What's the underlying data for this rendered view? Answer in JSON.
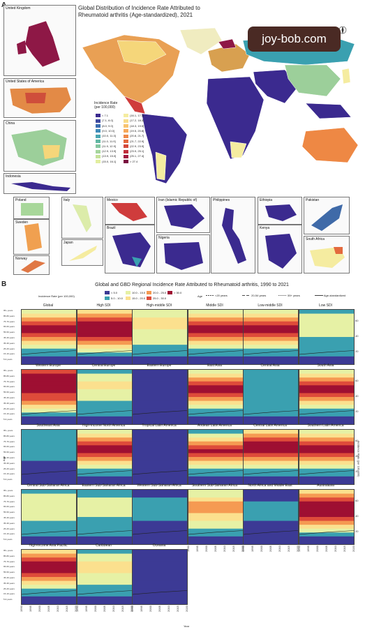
{
  "panel_a": {
    "letter": "A",
    "title_line1": "Global Distribution of Incidence Rate Attributed to",
    "title_line2": "Rheumatoid arthritis (Age-standardized), 2021",
    "legend_title_line1": "Incidence Rate",
    "legend_title_line2": "(per 100,000)",
    "legend_left": [
      "< 7.1",
      "(7.1, 8.0]",
      "(8.0, 9.0]",
      "(9.0, 10.0]",
      "(10.0, 11.0]",
      "(11.0, 11.9]",
      "(11.9, 12.9]",
      "(12.9, 13.9]",
      "(13.9, 15.0]",
      "(15.0, 16.1]"
    ],
    "legend_right": [
      "(16.1, 17.2]",
      "(17.2, 18.3]",
      "(18.3, 19.5]",
      "(19.5, 20.8]",
      "(20.8, 21.7]",
      "(21.7, 22.9]",
      "(22.9, 23.9]",
      "(23.9, 25.1]",
      "(25.1, 27.4]",
      "> 27.4"
    ],
    "legend_colors_left": [
      "#3b2a8f",
      "#3f4aa0",
      "#3a6cb0",
      "#3f8cba",
      "#4aa6b2",
      "#62b8a4",
      "#84c6a0",
      "#a6d59c",
      "#c6e29a",
      "#e2eea0"
    ],
    "legend_colors_right": [
      "#f5eca0",
      "#f7dc8a",
      "#f8c470",
      "#f6a85a",
      "#ef8a4a",
      "#e36a3e",
      "#d4493a",
      "#c02e3c",
      "#a21a42",
      "#7a0c40"
    ],
    "insets": [
      {
        "name": "United Kingdom",
        "color": "#8e1846"
      },
      {
        "name": "United States of America",
        "color": "#e38a46"
      },
      {
        "name": "China",
        "color": "#9ccf9a"
      },
      {
        "name": "Indonesia",
        "color": "#3b2a8f"
      },
      {
        "name": "Poland",
        "color": "#a8d79a"
      },
      {
        "name": "Italy",
        "color": "#dcecaa"
      },
      {
        "name": "Mexico",
        "color": "#cf3c3c"
      },
      {
        "name": "Iran (Islamic Republic of)",
        "color": "#3b2a8f"
      },
      {
        "name": "Philippines",
        "color": "#3b2a8f"
      },
      {
        "name": "Ethiopia",
        "color": "#3b2a8f"
      },
      {
        "name": "Pakistan",
        "color": "#3f6aa8"
      },
      {
        "name": "Sweden",
        "color": "#f0a050"
      },
      {
        "name": "Japan",
        "color": "#f5eca0"
      },
      {
        "name": "Brazil",
        "color": "#3b2a8f"
      },
      {
        "name": "Nigeria",
        "color": "#3b2a8f"
      },
      {
        "name": "Kenya",
        "color": "#3b2a8f"
      },
      {
        "name": "South Africa",
        "color": "#f5eca0"
      },
      {
        "name": "Norway",
        "color": "#e07845"
      }
    ]
  },
  "watermark": "joy-bob.com",
  "panel_b": {
    "letter": "B",
    "title": "Global and GBD Regional Incidence Rate Attributed to Rheumatoid arthritis, 1990 to 2021",
    "legend_label": "Incidence Rate (per 100,000)",
    "legend_bins": [
      "< 5.0",
      "5.0 - 10.0",
      "10.0 - 15.0",
      "15.0 - 20.0",
      "20.0 - 25.0",
      "25.0 - 30.0",
      "> 30.0"
    ],
    "legend_colors": [
      "#3c3a95",
      "#3aa0b0",
      "#e6f1a5",
      "#fbe08e",
      "#f59a52",
      "#de4b3a",
      "#9e0f32"
    ],
    "age_legend_title": "Age",
    "age_lines": [
      "<20 years",
      "20-54 years",
      "55+ years",
      "Age-standardized"
    ],
    "age_line_colors": [
      "#111111",
      "#111111",
      "#111111",
      "#111111"
    ],
    "x_axis_title": "Year",
    "y_axis_title": "Age",
    "right_axis_title": "Incidence Rate (per 100,000)",
    "right_ticks": [
      "60",
      "40",
      "20"
    ],
    "x_ticks": [
      "1990",
      "1995",
      "2000",
      "2005",
      "2010",
      "2015",
      "2020"
    ],
    "y_ticks": [
      "95+ years",
      "90-94 years",
      "85-89 years",
      "80-84 years",
      "75-79 years",
      "70-74 years",
      "65-69 years",
      "60-64 years",
      "55-59 years",
      "50-54 years",
      "45-49 years",
      "40-44 years",
      "35-39 years",
      "30-34 years",
      "25-29 years",
      "20-24 years",
      "15-19 years",
      "10-14 years",
      "5-9 years",
      "1-4 years"
    ]
  },
  "chart_data": {
    "type": "heatmap",
    "title": "Global and GBD Regional Incidence Rate Attributed to Rheumatoid arthritis, 1990 to 2021",
    "xlabel": "Year",
    "ylabel": "Age",
    "xlim": [
      1990,
      2021
    ],
    "facets": [
      {
        "name": "Global",
        "bands": [
          2,
          3,
          4,
          5,
          6,
          6,
          5,
          4,
          3,
          2,
          1,
          1,
          0,
          0
        ]
      },
      {
        "name": "High SDI",
        "bands": [
          3,
          4,
          5,
          6,
          6,
          6,
          6,
          5,
          4,
          3,
          2,
          1,
          0,
          0
        ]
      },
      {
        "name": "High-middle SDI",
        "bands": [
          2,
          2,
          3,
          3,
          3,
          2,
          2,
          2,
          2,
          1,
          1,
          1,
          0,
          0
        ]
      },
      {
        "name": "Middle SDI",
        "bands": [
          2,
          3,
          4,
          5,
          6,
          6,
          5,
          4,
          3,
          2,
          1,
          1,
          0,
          0
        ]
      },
      {
        "name": "Low-middle SDI",
        "bands": [
          2,
          3,
          4,
          5,
          6,
          6,
          5,
          4,
          3,
          2,
          1,
          1,
          0,
          0
        ]
      },
      {
        "name": "Low SDI",
        "bands": [
          1,
          2,
          2,
          2,
          2,
          2,
          2,
          1,
          1,
          1,
          1,
          1,
          0,
          0
        ]
      },
      {
        "name": "Western Europe",
        "bands": [
          5,
          6,
          6,
          6,
          6,
          6,
          5,
          5,
          4,
          3,
          2,
          1,
          0,
          0
        ]
      },
      {
        "name": "Central Europe",
        "bands": [
          1,
          2,
          2,
          3,
          3,
          2,
          2,
          2,
          1,
          1,
          1,
          1,
          0,
          0
        ]
      },
      {
        "name": "Eastern Europe",
        "bands": [
          0,
          0,
          0,
          0,
          0,
          0,
          0,
          0,
          0,
          0,
          0,
          0,
          0,
          0
        ]
      },
      {
        "name": "East Asia",
        "bands": [
          2,
          3,
          4,
          5,
          6,
          6,
          5,
          4,
          3,
          2,
          1,
          1,
          0,
          0
        ]
      },
      {
        "name": "Central Asia",
        "bands": [
          1,
          1,
          1,
          1,
          1,
          1,
          1,
          1,
          1,
          1,
          1,
          1,
          0,
          0
        ]
      },
      {
        "name": "South Asia",
        "bands": [
          2,
          3,
          4,
          5,
          6,
          6,
          5,
          4,
          3,
          2,
          1,
          1,
          0,
          0
        ]
      },
      {
        "name": "Southeast Asia",
        "bands": [
          1,
          1,
          1,
          1,
          1,
          1,
          1,
          1,
          0,
          0,
          0,
          0,
          0,
          0
        ]
      },
      {
        "name": "High-income North America",
        "bands": [
          2,
          3,
          4,
          5,
          6,
          6,
          5,
          4,
          3,
          2,
          1,
          1,
          0,
          0
        ]
      },
      {
        "name": "Tropical Latin America",
        "bands": [
          0,
          0,
          0,
          0,
          0,
          0,
          0,
          0,
          0,
          0,
          0,
          0,
          0,
          0
        ]
      },
      {
        "name": "Andean Latin America",
        "bands": [
          1,
          2,
          3,
          4,
          5,
          6,
          5,
          4,
          3,
          2,
          1,
          1,
          0,
          0
        ]
      },
      {
        "name": "Central Latin America",
        "bands": [
          3,
          4,
          5,
          6,
          6,
          6,
          5,
          4,
          3,
          2,
          1,
          1,
          0,
          0
        ]
      },
      {
        "name": "Southern Latin America",
        "bands": [
          2,
          3,
          4,
          5,
          6,
          6,
          5,
          4,
          3,
          2,
          1,
          1,
          0,
          0
        ]
      },
      {
        "name": "Central Sub-Saharan Africa",
        "bands": [
          1,
          2,
          2,
          2,
          2,
          2,
          2,
          2,
          1,
          1,
          1,
          1,
          0,
          0
        ]
      },
      {
        "name": "Eastern Sub-Saharan Africa",
        "bands": [
          1,
          1,
          2,
          2,
          2,
          2,
          2,
          1,
          1,
          1,
          1,
          1,
          0,
          0
        ]
      },
      {
        "name": "Western Sub-Saharan Africa",
        "bands": [
          0,
          0,
          1,
          1,
          1,
          1,
          1,
          1,
          0,
          0,
          0,
          0,
          0,
          0
        ]
      },
      {
        "name": "Southern Sub-Saharan Africa",
        "bands": [
          2,
          2,
          3,
          4,
          4,
          4,
          3,
          3,
          2,
          2,
          1,
          1,
          0,
          0
        ]
      },
      {
        "name": "North Africa and Middle East",
        "bands": [
          0,
          0,
          0,
          1,
          1,
          1,
          1,
          1,
          0,
          0,
          0,
          0,
          0,
          0
        ]
      },
      {
        "name": "Australasia",
        "bands": [
          3,
          4,
          5,
          6,
          6,
          6,
          6,
          5,
          4,
          3,
          2,
          1,
          0,
          0
        ]
      },
      {
        "name": "High-income Asia Pacific",
        "bands": [
          3,
          4,
          5,
          6,
          6,
          6,
          5,
          4,
          3,
          2,
          1,
          1,
          0,
          0
        ]
      },
      {
        "name": "Caribbean",
        "bands": [
          1,
          2,
          2,
          3,
          3,
          3,
          2,
          2,
          2,
          1,
          1,
          1,
          0,
          0
        ]
      },
      {
        "name": "Oceania",
        "bands": [
          0,
          0,
          0,
          0,
          0,
          0,
          0,
          0,
          0,
          0,
          0,
          0,
          0,
          0
        ]
      }
    ]
  }
}
